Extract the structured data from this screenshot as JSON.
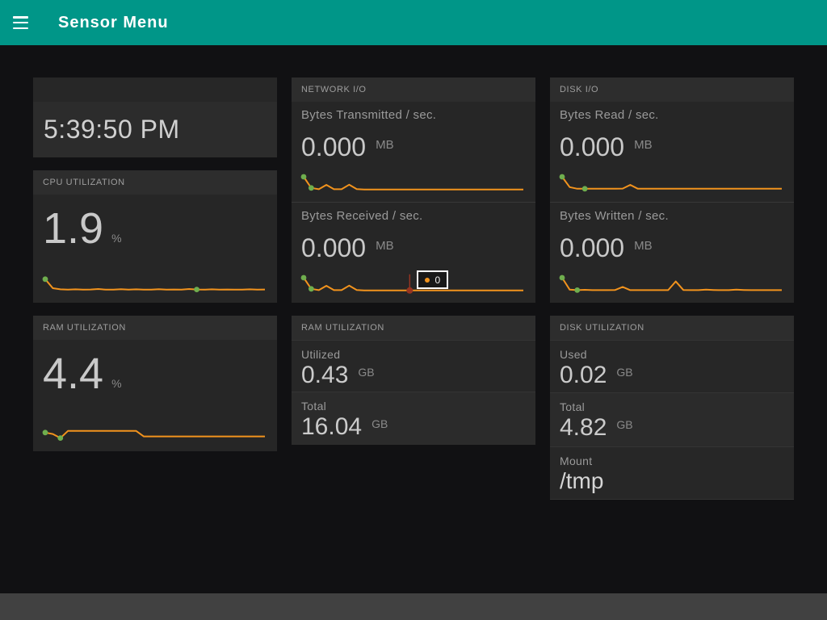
{
  "app": {
    "title": "Sensor Menu"
  },
  "colors": {
    "header_bg": "#009688",
    "page_bg": "#111113",
    "footer_bg": "#414141",
    "spark_line": "#f2931d",
    "marker_green": "#6fae4e",
    "marker_red": "#963421"
  },
  "clock": {
    "time": "5:39:50 PM"
  },
  "cards": {
    "cpu": {
      "header": "CPU UTILIZATION",
      "value": "1.9",
      "unit": "%"
    },
    "ram_pct": {
      "header": "RAM UTILIZATION",
      "value": "4.4",
      "unit": "%"
    },
    "network": {
      "header": "NETWORK I/O",
      "sections": [
        {
          "label": "Bytes Transmitted / sec.",
          "value": "0.000",
          "unit": "MB"
        },
        {
          "label": "Bytes Received / sec.",
          "value": "0.000",
          "unit": "MB",
          "tooltip": "0"
        }
      ]
    },
    "disk_io": {
      "header": "DISK I/O",
      "sections": [
        {
          "label": "Bytes Read / sec.",
          "value": "0.000",
          "unit": "MB"
        },
        {
          "label": "Bytes Written / sec.",
          "value": "0.000",
          "unit": "MB"
        }
      ]
    },
    "ram_util": {
      "header": "RAM UTILIZATION",
      "rows": [
        {
          "label": "Utilized",
          "value": "0.43",
          "unit": "GB"
        },
        {
          "label": "Total",
          "value": "16.04",
          "unit": "GB"
        }
      ]
    },
    "disk_util": {
      "header": "DISK UTILIZATION",
      "rows": [
        {
          "label": "Used",
          "value": "0.02",
          "unit": "GB"
        },
        {
          "label": "Total",
          "value": "4.82",
          "unit": "GB"
        },
        {
          "label": "Mount",
          "value": "/tmp",
          "unit": ""
        }
      ]
    }
  },
  "chart_data": {
    "type": "line",
    "note": "sparkline history charts, values in same units as card value, y-range 0-10 normalized",
    "sparklines": {
      "cpu": {
        "values": [
          8.6,
          3.0,
          2.3,
          2.1,
          2.3,
          2.1,
          2.2,
          2.5,
          2.1,
          2.1,
          2.4,
          2.1,
          2.3,
          2.1,
          2.1,
          2.4,
          2.1,
          2.2,
          2.1,
          2.5,
          2.2,
          2.1,
          2.3,
          2.1,
          2.2,
          2.1,
          2.1,
          2.3,
          2.1,
          2.2
        ],
        "markers": [
          {
            "i": 0,
            "color": "green"
          },
          {
            "i": 20,
            "color": "green"
          }
        ]
      },
      "net_tx": {
        "values": [
          9.0,
          2.1,
          1.3,
          4.0,
          1.3,
          1.3,
          4.1,
          1.4,
          1.1,
          1.1,
          1.1,
          1.1,
          1.1,
          1.1,
          1.1,
          1.1,
          1.1,
          1.1,
          1.1,
          1.1,
          1.1,
          1.1,
          1.1,
          1.1,
          1.1,
          1.1,
          1.1,
          1.1,
          1.1,
          1.1
        ],
        "markers": [
          {
            "i": 0,
            "color": "green"
          },
          {
            "i": 1,
            "color": "green"
          }
        ]
      },
      "net_rx": {
        "values": [
          9.0,
          2.1,
          1.3,
          4.0,
          1.3,
          1.3,
          4.1,
          1.4,
          1.1,
          1.1,
          1.1,
          1.1,
          1.1,
          1.1,
          1.1,
          1.1,
          1.1,
          1.1,
          1.1,
          1.1,
          1.1,
          1.1,
          1.1,
          1.1,
          1.1,
          1.1,
          1.1,
          1.1,
          1.1,
          1.1
        ],
        "markers": [
          {
            "i": 0,
            "color": "green"
          },
          {
            "i": 1,
            "color": "green"
          },
          {
            "i": 14,
            "color": "red"
          }
        ]
      },
      "disk_read": {
        "values": [
          9.0,
          2.6,
          1.6,
          1.6,
          1.6,
          1.6,
          1.6,
          1.6,
          1.7,
          4.0,
          1.6,
          1.6,
          1.6,
          1.6,
          1.6,
          1.6,
          1.6,
          1.6,
          1.6,
          1.6,
          1.6,
          1.6,
          1.6,
          1.6,
          1.6,
          1.6,
          1.6,
          1.6,
          1.6,
          1.6
        ],
        "markers": [
          {
            "i": 0,
            "color": "green"
          },
          {
            "i": 3,
            "color": "green"
          }
        ]
      },
      "disk_write": {
        "values": [
          9.0,
          1.6,
          1.3,
          1.5,
          1.3,
          1.3,
          1.3,
          1.4,
          3.3,
          1.3,
          1.3,
          1.3,
          1.3,
          1.3,
          1.3,
          6.7,
          1.4,
          1.3,
          1.3,
          1.6,
          1.4,
          1.3,
          1.3,
          1.6,
          1.4,
          1.3,
          1.3,
          1.3,
          1.3,
          1.3
        ],
        "markers": [
          {
            "i": 0,
            "color": "green"
          },
          {
            "i": 2,
            "color": "green"
          }
        ]
      },
      "ram_pct": {
        "values": [
          5.6,
          4.7,
          2.2,
          6.6,
          6.6,
          6.6,
          6.6,
          6.6,
          6.6,
          6.6,
          6.6,
          6.6,
          6.6,
          3.2,
          3.2,
          3.2,
          3.2,
          3.2,
          3.2,
          3.2,
          3.2,
          3.2,
          3.2,
          3.2,
          3.2,
          3.2,
          3.2,
          3.2,
          3.2,
          3.2
        ],
        "markers": [
          {
            "i": 0,
            "color": "green"
          },
          {
            "i": 2,
            "color": "green"
          }
        ]
      }
    }
  }
}
